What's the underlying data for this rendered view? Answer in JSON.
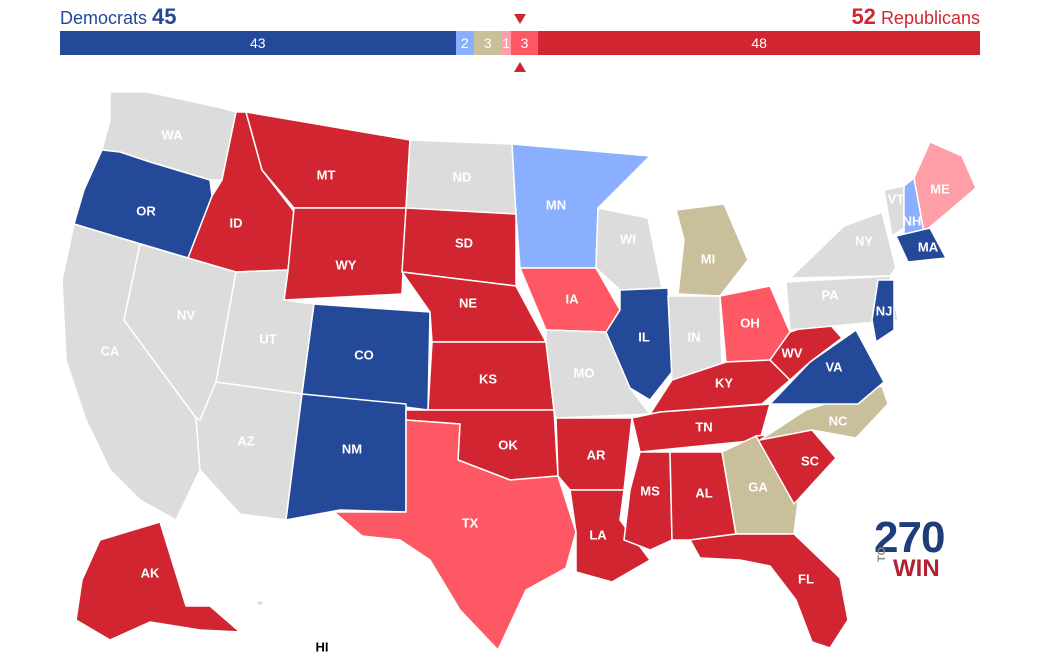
{
  "header": {
    "dem_label": "Democrats",
    "dem_total": "45",
    "rep_total": "52",
    "rep_label": "Republicans"
  },
  "colors": {
    "safe_dem": "#244999",
    "likely_dem": "#8aafff",
    "tossup": "#c9bf9a",
    "likely_rep": "#ff9ea6",
    "lean_rep": "#ff5865",
    "safe_rep": "#d22532",
    "no_race": "#dcdcdc"
  },
  "bar": [
    {
      "value": "43",
      "seats": 43,
      "color": "#244999"
    },
    {
      "value": "2",
      "seats": 2,
      "color": "#8aafff"
    },
    {
      "value": "3",
      "seats": 3,
      "color": "#c9bf9a"
    },
    {
      "value": "1",
      "seats": 1,
      "color": "#ff9ea6"
    },
    {
      "value": "3",
      "seats": 3,
      "color": "#ff5865"
    },
    {
      "value": "48",
      "seats": 48,
      "color": "#d22532"
    }
  ],
  "states": [
    {
      "abbr": "WA",
      "rating": "no_race"
    },
    {
      "abbr": "OR",
      "rating": "safe_dem"
    },
    {
      "abbr": "CA",
      "rating": "no_race"
    },
    {
      "abbr": "NV",
      "rating": "no_race"
    },
    {
      "abbr": "ID",
      "rating": "safe_rep"
    },
    {
      "abbr": "MT",
      "rating": "safe_rep"
    },
    {
      "abbr": "WY",
      "rating": "safe_rep"
    },
    {
      "abbr": "UT",
      "rating": "no_race"
    },
    {
      "abbr": "AZ",
      "rating": "no_race"
    },
    {
      "abbr": "CO",
      "rating": "safe_dem"
    },
    {
      "abbr": "NM",
      "rating": "safe_dem"
    },
    {
      "abbr": "ND",
      "rating": "no_race"
    },
    {
      "abbr": "SD",
      "rating": "safe_rep"
    },
    {
      "abbr": "NE",
      "rating": "safe_rep"
    },
    {
      "abbr": "KS",
      "rating": "safe_rep"
    },
    {
      "abbr": "OK",
      "rating": "safe_rep"
    },
    {
      "abbr": "TX",
      "rating": "lean_rep"
    },
    {
      "abbr": "MN",
      "rating": "likely_dem"
    },
    {
      "abbr": "IA",
      "rating": "lean_rep"
    },
    {
      "abbr": "MO",
      "rating": "no_race"
    },
    {
      "abbr": "AR",
      "rating": "safe_rep"
    },
    {
      "abbr": "LA",
      "rating": "safe_rep"
    },
    {
      "abbr": "WI",
      "rating": "no_race"
    },
    {
      "abbr": "IL",
      "rating": "safe_dem"
    },
    {
      "abbr": "MI",
      "rating": "tossup"
    },
    {
      "abbr": "IN",
      "rating": "no_race"
    },
    {
      "abbr": "OH",
      "rating": "lean_rep"
    },
    {
      "abbr": "KY",
      "rating": "safe_rep"
    },
    {
      "abbr": "TN",
      "rating": "safe_rep"
    },
    {
      "abbr": "MS",
      "rating": "safe_rep"
    },
    {
      "abbr": "AL",
      "rating": "safe_rep"
    },
    {
      "abbr": "GA",
      "rating": "tossup"
    },
    {
      "abbr": "FL",
      "rating": "safe_rep"
    },
    {
      "abbr": "SC",
      "rating": "safe_rep"
    },
    {
      "abbr": "NC",
      "rating": "tossup"
    },
    {
      "abbr": "VA",
      "rating": "safe_dem"
    },
    {
      "abbr": "WV",
      "rating": "safe_rep"
    },
    {
      "abbr": "PA",
      "rating": "no_race"
    },
    {
      "abbr": "NY",
      "rating": "no_race"
    },
    {
      "abbr": "VT",
      "rating": "no_race"
    },
    {
      "abbr": "NH",
      "rating": "likely_dem"
    },
    {
      "abbr": "ME",
      "rating": "likely_rep"
    },
    {
      "abbr": "MA",
      "rating": "safe_dem"
    },
    {
      "abbr": "NJ",
      "rating": "safe_dem"
    },
    {
      "abbr": "AK",
      "rating": "safe_rep"
    },
    {
      "abbr": "HI",
      "rating": "no_race"
    }
  ],
  "logo": {
    "number": "270",
    "to": "TO",
    "win": "WIN"
  }
}
